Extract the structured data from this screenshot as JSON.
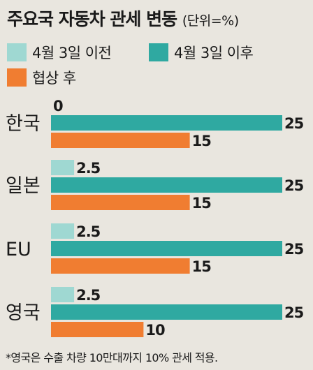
{
  "header": {
    "title": "주요국 자동차 관세 변동",
    "unit": "(단위=%)"
  },
  "footnote": "*영국은 수출 차량 10만대까지 10% 관세 적용.",
  "colors": {
    "before": "#9fd8d2",
    "after": "#2fa9a1",
    "negotiated": "#f07d31"
  },
  "chart_data": {
    "type": "bar",
    "orientation": "horizontal",
    "title": "주요국 자동차 관세 변동",
    "unit": "(단위=%)",
    "categories": [
      "한국",
      "일본",
      "EU",
      "영국"
    ],
    "series": [
      {
        "name": "4월 3일 이전",
        "values": [
          0,
          2.5,
          2.5,
          2.5
        ],
        "labels": [
          "0",
          "2.5",
          "2.5",
          "2.5"
        ]
      },
      {
        "name": "4월 3일 이후",
        "values": [
          25,
          25,
          25,
          25
        ],
        "labels": [
          "25",
          "25",
          "25",
          "25"
        ]
      },
      {
        "name": "협상 후",
        "values": [
          15,
          15,
          15,
          10
        ],
        "labels": [
          "15",
          "15",
          "15",
          "10"
        ]
      }
    ],
    "xlim": [
      0,
      25
    ],
    "grid": false,
    "legend": "top"
  }
}
